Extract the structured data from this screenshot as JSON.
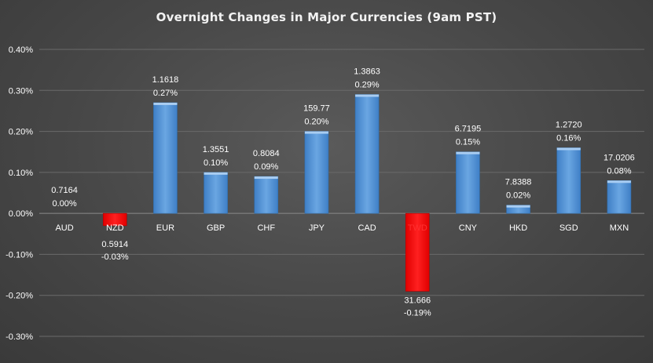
{
  "chart_data": {
    "type": "bar",
    "title": "Overnight Changes in Major Currencies (9am PST)",
    "xlabel": "",
    "ylabel": "",
    "ylim": [
      -0.3,
      0.4
    ],
    "yticks": [
      "0.40%",
      "0.30%",
      "0.20%",
      "0.10%",
      "0.00%",
      "-0.10%",
      "-0.20%",
      "-0.30%"
    ],
    "ytick_values": [
      0.4,
      0.3,
      0.2,
      0.1,
      0.0,
      -0.1,
      -0.2,
      -0.3
    ],
    "grid": true,
    "categories": [
      "AUD",
      "NZD",
      "EUR",
      "GBP",
      "CHF",
      "JPY",
      "CAD",
      "TWD",
      "CNY",
      "HKD",
      "SGD",
      "MXN"
    ],
    "values": [
      0.0,
      -0.03,
      0.27,
      0.1,
      0.09,
      0.2,
      0.29,
      -0.19,
      0.15,
      0.02,
      0.16,
      0.08
    ],
    "rates": [
      "0.7164",
      "0.5914",
      "1.1618",
      "1.3551",
      "0.8084",
      "159.77",
      "1.3863",
      "31.666",
      "6.7195",
      "7.8388",
      "1.2720",
      "17.0206"
    ],
    "pct_labels": [
      "0.00%",
      "-0.03%",
      "0.27%",
      "0.10%",
      "0.09%",
      "0.20%",
      "0.29%",
      "-0.19%",
      "0.15%",
      "0.02%",
      "0.16%",
      "0.08%"
    ],
    "colors": {
      "positive": "#5b9bd5",
      "negative": "#ff0000",
      "grid": "#6a6a6a",
      "axis": "#8a8a8a"
    }
  }
}
